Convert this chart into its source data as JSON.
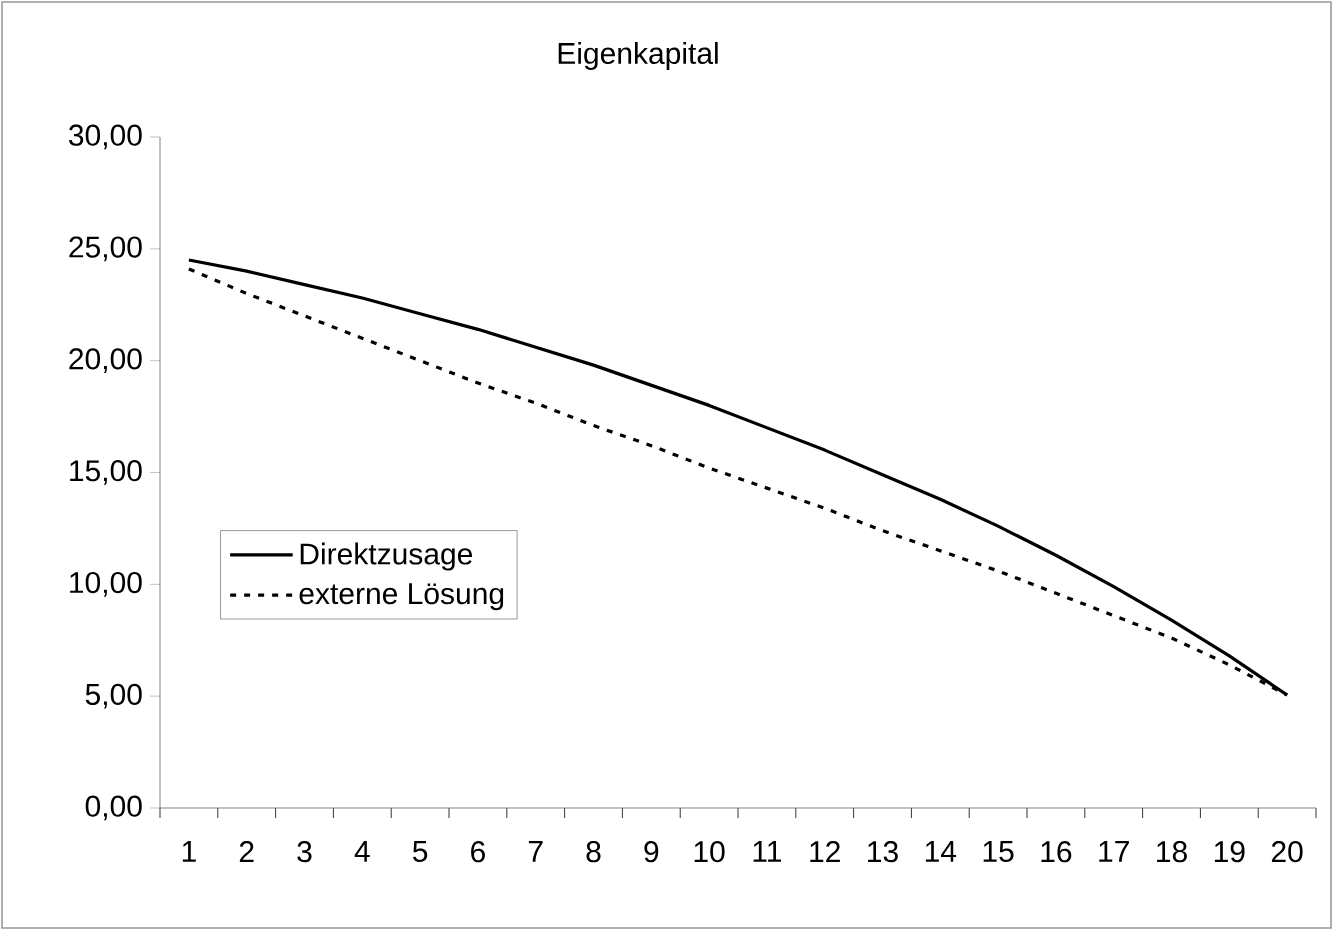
{
  "chart_data": {
    "type": "line",
    "title": "Eigenkapital",
    "categories": [
      "1",
      "2",
      "3",
      "4",
      "5",
      "6",
      "7",
      "8",
      "9",
      "10",
      "11",
      "12",
      "13",
      "14",
      "15",
      "16",
      "17",
      "18",
      "19",
      "20"
    ],
    "series": [
      {
        "name": "Direktzusage",
        "color": "#000000",
        "line_style": "solid",
        "values": [
          24.5,
          24.0,
          23.4,
          22.8,
          22.1,
          21.4,
          20.6,
          19.8,
          18.9,
          18.0,
          17.0,
          16.0,
          14.9,
          13.8,
          12.6,
          11.3,
          9.9,
          8.4,
          6.8,
          5.05
        ]
      },
      {
        "name": "externe Lösung",
        "color": "#000000",
        "line_style": "dotted",
        "values": [
          24.1,
          23.0,
          22.0,
          21.0,
          20.0,
          19.0,
          18.1,
          17.1,
          16.2,
          15.2,
          14.3,
          13.4,
          12.4,
          11.5,
          10.6,
          9.6,
          8.6,
          7.6,
          6.4,
          5.05
        ]
      }
    ],
    "ylim": [
      0,
      30
    ],
    "yticks": [
      {
        "value": 0,
        "label": "0,00"
      },
      {
        "value": 5,
        "label": "5,00"
      },
      {
        "value": 10,
        "label": "10,00"
      },
      {
        "value": 15,
        "label": "15,00"
      },
      {
        "value": 20,
        "label": "20,00"
      },
      {
        "value": 25,
        "label": "25,00"
      },
      {
        "value": 30,
        "label": "30,00"
      }
    ],
    "grid": false,
    "legend": "left",
    "marker": "none"
  }
}
